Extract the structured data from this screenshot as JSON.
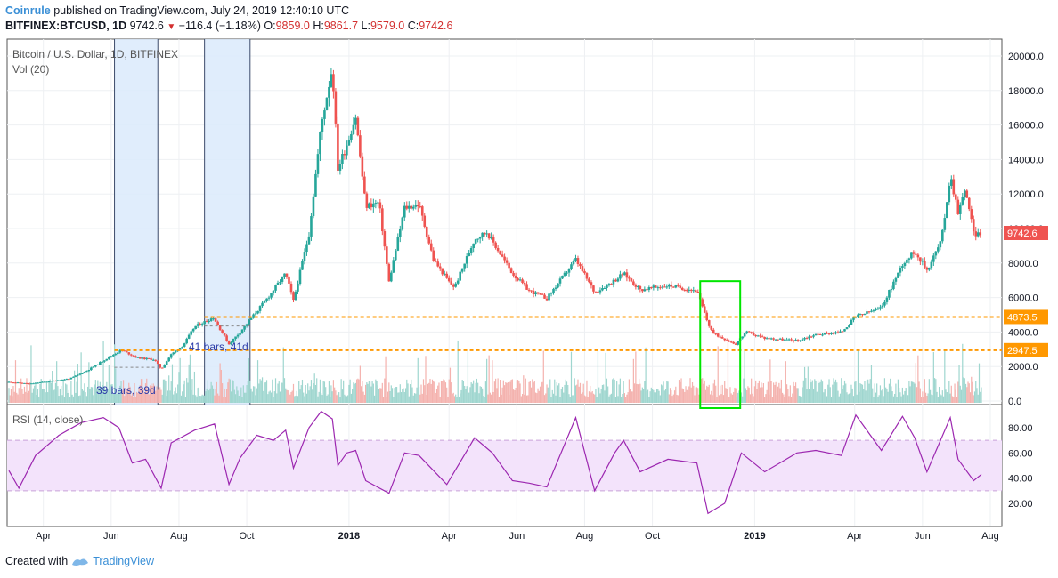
{
  "header": {
    "publisher": "Coinrule",
    "published_text": "published on TradingView.com, July 24, 2019 12:40:10 UTC",
    "symbol": "BITFINEX:BTCUSD, 1D",
    "last": "9742.6",
    "change": "−116.4 (−1.18%)",
    "o_label": "O:",
    "o": "9859.0",
    "h_label": "H:",
    "h": "9861.7",
    "l_label": "L:",
    "l": "9579.0",
    "c_label": "C:",
    "c": "9742.6"
  },
  "footer": {
    "created_with": "Created with",
    "brand": "TradingView"
  },
  "colors": {
    "up": "#26a69a",
    "down": "#ef5350",
    "rsi": "#9c27b0",
    "rsi_band": "#f3e3fb",
    "range_fill": "#dbeafc",
    "level": "#ff9800",
    "highlight": "#00e600",
    "grid": "#eef0f3"
  },
  "chart_data": [
    {
      "type": "candlestick",
      "title": "Bitcoin / U.S. Dollar, 1D, BITFINEX",
      "volume_label": "Vol (20)",
      "x_ticks": [
        "Apr",
        "Jun",
        "Aug",
        "Oct",
        "2018",
        "Apr",
        "Jun",
        "Aug",
        "Oct",
        "2019",
        "Apr",
        "Jun",
        "Aug"
      ],
      "y_ticks": [
        "20000.0",
        "18000.0",
        "16000.0",
        "14000.0",
        "12000.0",
        "10000.0",
        "8000.0",
        "6000.0",
        "4000.0",
        "2000.0",
        "0.0"
      ],
      "ylim": [
        0,
        20600
      ],
      "price_tag": "9742.6",
      "levels": [
        {
          "label": "4873.5",
          "value": 4873.5
        },
        {
          "label": "2947.5",
          "value": 2947.5
        }
      ],
      "range_annotations": [
        "39 bars, 39d",
        "41 bars, 41d"
      ],
      "series": [
        {
          "name": "BTCUSD",
          "points": [
            [
              "2017-03-01",
              1100
            ],
            [
              "2017-03-20",
              1000
            ],
            [
              "2017-04-05",
              1130
            ],
            [
              "2017-04-25",
              1300
            ],
            [
              "2017-05-10",
              1750
            ],
            [
              "2017-05-25",
              2350
            ],
            [
              "2017-06-10",
              2950
            ],
            [
              "2017-06-25",
              2500
            ],
            [
              "2017-07-10",
              2400
            ],
            [
              "2017-07-16",
              1850
            ],
            [
              "2017-07-25",
              2700
            ],
            [
              "2017-08-05",
              3250
            ],
            [
              "2017-08-15",
              4300
            ],
            [
              "2017-09-01",
              4850
            ],
            [
              "2017-09-15",
              3300
            ],
            [
              "2017-09-25",
              4000
            ],
            [
              "2017-10-10",
              5200
            ],
            [
              "2017-10-20",
              6000
            ],
            [
              "2017-11-05",
              7400
            ],
            [
              "2017-11-12",
              5800
            ],
            [
              "2017-11-26",
              9700
            ],
            [
              "2017-12-07",
              16000
            ],
            [
              "2017-12-17",
              19400
            ],
            [
              "2017-12-22",
              13500
            ],
            [
              "2017-12-28",
              14500
            ],
            [
              "2018-01-07",
              16500
            ],
            [
              "2018-01-16",
              11300
            ],
            [
              "2018-01-28",
              11500
            ],
            [
              "2018-02-06",
              6900
            ],
            [
              "2018-02-20",
              11200
            ],
            [
              "2018-03-05",
              11400
            ],
            [
              "2018-03-18",
              8200
            ],
            [
              "2018-04-01",
              6900
            ],
            [
              "2018-04-06",
              6600
            ],
            [
              "2018-04-24",
              9400
            ],
            [
              "2018-05-05",
              9800
            ],
            [
              "2018-05-28",
              7400
            ],
            [
              "2018-06-12",
              6400
            ],
            [
              "2018-06-28",
              5950
            ],
            [
              "2018-07-24",
              8200
            ],
            [
              "2018-08-10",
              6300
            ],
            [
              "2018-08-28",
              7000
            ],
            [
              "2018-09-05",
              7400
            ],
            [
              "2018-09-20",
              6450
            ],
            [
              "2018-10-15",
              6700
            ],
            [
              "2018-11-10",
              6400
            ],
            [
              "2018-11-20",
              4500
            ],
            [
              "2018-11-25",
              3900
            ],
            [
              "2018-12-15",
              3300
            ],
            [
              "2018-12-24",
              4000
            ],
            [
              "2019-01-10",
              3650
            ],
            [
              "2019-02-08",
              3500
            ],
            [
              "2019-02-25",
              3850
            ],
            [
              "2019-03-20",
              4000
            ],
            [
              "2019-04-02",
              4900
            ],
            [
              "2019-04-25",
              5400
            ],
            [
              "2019-05-14",
              7950
            ],
            [
              "2019-05-25",
              8700
            ],
            [
              "2019-06-05",
              7600
            ],
            [
              "2019-06-18",
              9300
            ],
            [
              "2019-06-26",
              13100
            ],
            [
              "2019-07-03",
              11000
            ],
            [
              "2019-07-10",
              12300
            ],
            [
              "2019-07-17",
              9700
            ],
            [
              "2019-07-24",
              9742.6
            ]
          ]
        }
      ]
    },
    {
      "type": "line",
      "title": "RSI (14, close)",
      "y_ticks": [
        "80.00",
        "60.00",
        "40.00",
        "20.00"
      ],
      "ylim": [
        0,
        100
      ],
      "band": [
        30,
        70
      ],
      "series": [
        {
          "name": "RSI",
          "points": [
            [
              "2017-03-01",
              46
            ],
            [
              "2017-03-10",
              32
            ],
            [
              "2017-03-25",
              58
            ],
            [
              "2017-04-15",
              74
            ],
            [
              "2017-05-05",
              84
            ],
            [
              "2017-05-25",
              88
            ],
            [
              "2017-06-08",
              80
            ],
            [
              "2017-06-20",
              52
            ],
            [
              "2017-07-02",
              55
            ],
            [
              "2017-07-16",
              32
            ],
            [
              "2017-07-25",
              68
            ],
            [
              "2017-08-15",
              78
            ],
            [
              "2017-09-02",
              83
            ],
            [
              "2017-09-15",
              35
            ],
            [
              "2017-09-25",
              56
            ],
            [
              "2017-10-10",
              74
            ],
            [
              "2017-10-25",
              70
            ],
            [
              "2017-11-05",
              78
            ],
            [
              "2017-11-12",
              48
            ],
            [
              "2017-11-26",
              80
            ],
            [
              "2017-12-07",
              93
            ],
            [
              "2017-12-17",
              87
            ],
            [
              "2017-12-22",
              50
            ],
            [
              "2017-12-30",
              60
            ],
            [
              "2018-01-07",
              62
            ],
            [
              "2018-01-16",
              38
            ],
            [
              "2018-02-06",
              28
            ],
            [
              "2018-02-20",
              60
            ],
            [
              "2018-03-05",
              58
            ],
            [
              "2018-03-30",
              35
            ],
            [
              "2018-04-24",
              72
            ],
            [
              "2018-05-10",
              60
            ],
            [
              "2018-05-28",
              38
            ],
            [
              "2018-06-12",
              36
            ],
            [
              "2018-06-28",
              33
            ],
            [
              "2018-07-24",
              88
            ],
            [
              "2018-08-10",
              30
            ],
            [
              "2018-08-28",
              60
            ],
            [
              "2018-09-05",
              70
            ],
            [
              "2018-09-20",
              45
            ],
            [
              "2018-10-15",
              55
            ],
            [
              "2018-11-10",
              52
            ],
            [
              "2018-11-20",
              12
            ],
            [
              "2018-12-05",
              20
            ],
            [
              "2018-12-20",
              60
            ],
            [
              "2019-01-10",
              45
            ],
            [
              "2019-02-08",
              60
            ],
            [
              "2019-02-25",
              62
            ],
            [
              "2019-03-20",
              58
            ],
            [
              "2019-04-02",
              90
            ],
            [
              "2019-04-25",
              62
            ],
            [
              "2019-05-14",
              89
            ],
            [
              "2019-05-25",
              72
            ],
            [
              "2019-06-05",
              45
            ],
            [
              "2019-06-26",
              88
            ],
            [
              "2019-07-03",
              55
            ],
            [
              "2019-07-17",
              38
            ],
            [
              "2019-07-24",
              43
            ]
          ]
        }
      ]
    }
  ]
}
